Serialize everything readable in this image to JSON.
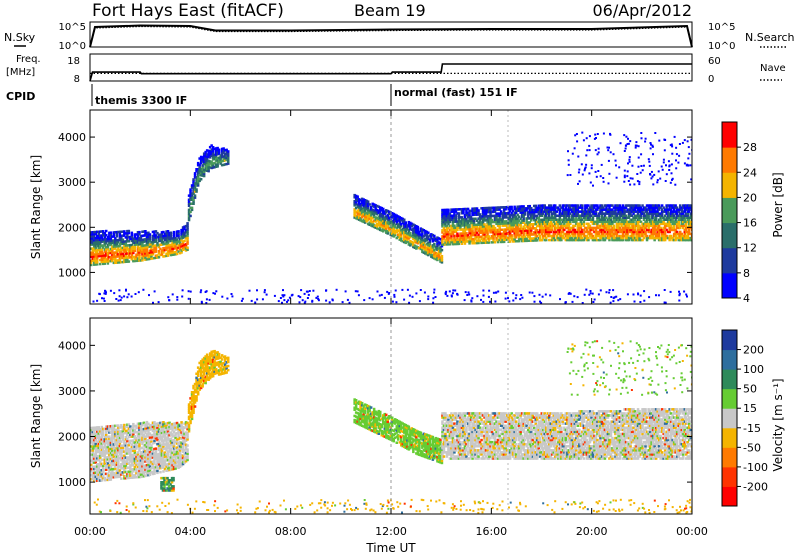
{
  "header": {
    "station": "Fort Hays East (fitACF)",
    "beam": "Beam 19",
    "date": "06/Apr/2012"
  },
  "noise_panel": {
    "left_label": "N.Sky",
    "right_label": "N.Search",
    "left_ticks": [
      "10^5",
      "10^0"
    ],
    "right_ticks": [
      "10^5",
      "10^0"
    ]
  },
  "freq_panel": {
    "left_label_1": "Freq.",
    "left_label_2": "[MHz]",
    "right_label": "Nave",
    "left_ticks": [
      "18",
      "8"
    ],
    "right_ticks": [
      "60",
      "0"
    ]
  },
  "cpid_panel": {
    "label": "CPID",
    "modes": [
      "themis 3300 IF",
      "normal (fast) 151 IF"
    ]
  },
  "time_axis": {
    "label": "Time UT",
    "ticks": [
      "00:00",
      "04:00",
      "08:00",
      "12:00",
      "16:00",
      "20:00",
      "00:00"
    ]
  },
  "power_colorbar": {
    "label": "Power [dB]",
    "ticks": [
      "28",
      "24",
      "20",
      "16",
      "12",
      "8",
      "4"
    ],
    "colors": [
      "#0000ff",
      "#1e3a9e",
      "#2a6e6a",
      "#4a9a5a",
      "#f4b400",
      "#ff7a00",
      "#ff0000"
    ]
  },
  "velocity_colorbar": {
    "label": "Velocity [m s⁻¹]",
    "ticks": [
      "200",
      "100",
      "50",
      "15",
      "-15",
      "-50",
      "-100",
      "-200"
    ],
    "colors": [
      "#1e3a9e",
      "#2e6e9e",
      "#2e8a5a",
      "#66cc33",
      "#c8c8c8",
      "#f4b400",
      "#ff7a00",
      "#ff3300",
      "#ff0000"
    ]
  },
  "chart_data": [
    {
      "type": "heatmap",
      "title": "",
      "xlabel": "Time UT",
      "ylabel": "Slant Range [km]",
      "xlim": [
        0,
        24
      ],
      "ylim": [
        300,
        4600
      ],
      "yticks": [
        "1000",
        "2000",
        "3000",
        "4000"
      ],
      "quantity": "Power [dB]",
      "color_range": [
        0,
        32
      ],
      "features": [
        {
          "name": "early band",
          "t": [
            0.0,
            2.0,
            3.5,
            3.9
          ],
          "range_lo": [
            1150,
            1250,
            1400,
            1500
          ],
          "range_hi": [
            1900,
            1900,
            1900,
            2100
          ],
          "peak_db": 28
        },
        {
          "name": "rising arc",
          "t": [
            3.9,
            4.3,
            4.8,
            5.5
          ],
          "range_lo": [
            2100,
            3000,
            3300,
            3400
          ],
          "range_hi": [
            2700,
            3500,
            3800,
            3700
          ],
          "peak_db": 16
        },
        {
          "name": "descending arc",
          "t": [
            10.5,
            12.0,
            13.0,
            14.0
          ],
          "range_lo": [
            2200,
            1800,
            1500,
            1200
          ],
          "range_hi": [
            2700,
            2300,
            2000,
            1700
          ],
          "peak_db": 24
        },
        {
          "name": "late band",
          "t": [
            14.0,
            18.0,
            22.0,
            24.0
          ],
          "range_lo": [
            1600,
            1700,
            1700,
            1700
          ],
          "range_hi": [
            2400,
            2500,
            2500,
            2500
          ],
          "peak_db": 28
        }
      ]
    },
    {
      "type": "heatmap",
      "title": "",
      "xlabel": "Time UT",
      "ylabel": "Slant Range [km]",
      "xlim": [
        0,
        24
      ],
      "ylim": [
        300,
        4600
      ],
      "yticks": [
        "1000",
        "2000",
        "3000",
        "4000"
      ],
      "quantity": "Velocity [m s⁻¹]",
      "color_range": [
        -200,
        200
      ],
      "features": [
        {
          "name": "early band",
          "t": [
            0.0,
            2.0,
            3.5,
            3.9
          ],
          "range_lo": [
            1000,
            1100,
            1300,
            1500
          ],
          "range_hi": [
            2200,
            2300,
            2300,
            2300
          ],
          "typical_velocity": -15
        },
        {
          "name": "rising arc",
          "t": [
            3.9,
            4.3,
            4.8,
            5.5
          ],
          "range_lo": [
            2100,
            3000,
            3300,
            3400
          ],
          "range_hi": [
            2700,
            3600,
            3900,
            3700
          ],
          "typical_velocity": -50
        },
        {
          "name": "descending arc",
          "t": [
            10.5,
            12.0,
            13.0,
            14.0
          ],
          "range_lo": [
            2300,
            1900,
            1600,
            1400
          ],
          "range_hi": [
            2800,
            2400,
            2100,
            1900
          ],
          "typical_velocity": 15
        },
        {
          "name": "late band",
          "t": [
            14.0,
            18.0,
            22.0,
            24.0
          ],
          "range_lo": [
            1500,
            1500,
            1500,
            1500
          ],
          "range_hi": [
            2500,
            2500,
            2600,
            2600
          ],
          "typical_velocity": -15
        },
        {
          "name": "ionospheric patch",
          "t": [
            2.8,
            3.3
          ],
          "range_lo": [
            800,
            800
          ],
          "range_hi": [
            1100,
            1100
          ],
          "typical_velocity": 50
        }
      ]
    },
    {
      "type": "line",
      "title": "",
      "xlabel": "Time UT",
      "ylabel": "N.Sky",
      "xlim": [
        0,
        24
      ],
      "ylim": [
        0,
        5
      ],
      "series": [
        {
          "name": "N.Sky",
          "x": [
            0,
            0.2,
            2,
            4,
            5,
            8,
            12,
            16,
            20,
            23.8,
            24
          ],
          "values": [
            0,
            4.0,
            4.3,
            4.2,
            3.3,
            3.3,
            3.5,
            3.6,
            3.6,
            4.2,
            0
          ]
        },
        {
          "name": "N.Search",
          "x": [
            0,
            0.2,
            2,
            4,
            5,
            8,
            12,
            16,
            20,
            23.8,
            24
          ],
          "values": [
            0,
            3.8,
            4.1,
            4.0,
            3.1,
            3.1,
            3.3,
            3.4,
            3.4,
            4.0,
            0
          ]
        }
      ]
    },
    {
      "type": "line",
      "title": "",
      "xlabel": "Time UT",
      "ylabel": "Freq. [MHz]",
      "xlim": [
        0,
        24
      ],
      "ylim": [
        8,
        18
      ],
      "series": [
        {
          "name": "Freq.",
          "x": [
            0,
            0.1,
            2.0,
            2.05,
            12.0,
            12.05,
            14.0,
            14.05,
            24
          ],
          "values": [
            8,
            11.3,
            11.3,
            10.7,
            10.7,
            11.3,
            11.3,
            14.3,
            14.3
          ]
        },
        {
          "name": "Nave",
          "x": [
            0,
            12,
            12.05,
            24
          ],
          "values": [
            21,
            21,
            21,
            21
          ]
        }
      ]
    }
  ]
}
